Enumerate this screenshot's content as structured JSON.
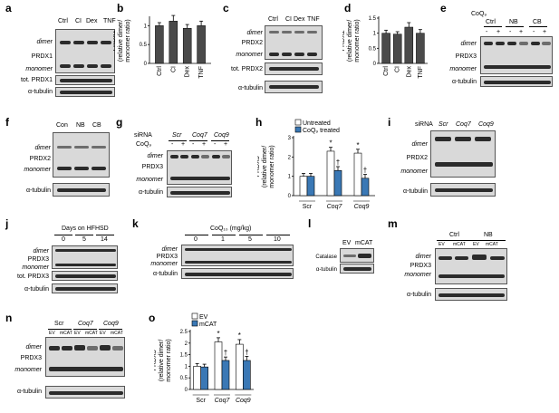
{
  "panels": {
    "a": {
      "letter": "a",
      "lanes": [
        "Ctrl",
        "CI",
        "Dex",
        "TNF"
      ],
      "rows": [
        "dimer",
        "PRDX1",
        "monomer",
        "tot. PRDX1",
        "α-tubulin"
      ]
    },
    "b": {
      "letter": "b"
    },
    "c": {
      "letter": "c",
      "lanes": [
        "Ctrl",
        "CI",
        "Dex",
        "TNF"
      ],
      "rows": [
        "dimer",
        "PRDX2",
        "monomer",
        "tot. PRDX2",
        "α-tubulin"
      ]
    },
    "d": {
      "letter": "d"
    },
    "e": {
      "letter": "e",
      "coq": "CoQ₉",
      "groups": [
        "Ctrl",
        "NB",
        "CB"
      ],
      "signs": [
        "-",
        "+",
        "-",
        "+",
        "-",
        "+"
      ],
      "rows": [
        "dimer",
        "PRDX3",
        "monomer",
        "α-tubulin"
      ]
    },
    "f": {
      "letter": "f",
      "lanes": [
        "Con",
        "NB",
        "CB"
      ],
      "rows": [
        "dimer",
        "PRDX2",
        "monomer",
        "α-tubulin"
      ]
    },
    "g": {
      "letter": "g",
      "sirna": "siRNA",
      "groups": [
        "Scr",
        "Coq7",
        "Coq9"
      ],
      "coq": "CoQ₉",
      "signs": [
        "-",
        "+",
        "-",
        "+",
        "-",
        "+"
      ],
      "rows": [
        "dimer",
        "PRDX3",
        "monomer",
        "α-tubulin"
      ]
    },
    "h": {
      "letter": "h",
      "legend": [
        "Untreated",
        "CoQ₉ treated"
      ]
    },
    "i": {
      "letter": "i",
      "sirna": "siRNA",
      "groups": [
        "Scr",
        "Coq7",
        "Coq9"
      ],
      "rows": [
        "dimer",
        "PRDX2",
        "monomer",
        "α-tubulin"
      ]
    },
    "j": {
      "letter": "j",
      "title": "Days on HFHSD",
      "groups": [
        "0",
        "5",
        "14"
      ],
      "rows": [
        "dimer",
        "PRDX3",
        "monomer",
        "tot. PRDX3",
        "α-tubulin"
      ]
    },
    "k": {
      "letter": "k",
      "title": "CoQ₁₀ (mg/kg)",
      "groups": [
        "0",
        "1",
        "5",
        "10"
      ],
      "rows": [
        "dimer",
        "PRDX3",
        "monomer",
        "α-tubulin"
      ]
    },
    "l": {
      "letter": "l",
      "lanes": [
        "EV",
        "mCAT"
      ],
      "rows": [
        "Catalase",
        "α-tubulin"
      ]
    },
    "m": {
      "letter": "m",
      "groups": [
        "Ctrl",
        "NB"
      ],
      "lanes": [
        "EV",
        "mCAT",
        "EV",
        "mCAT"
      ],
      "rows": [
        "dimer",
        "PRDX3",
        "monomer",
        "α-tubulin"
      ]
    },
    "n": {
      "letter": "n",
      "groups": [
        "Scr",
        "Coq7",
        "Coq9"
      ],
      "lanes": [
        "EV",
        "mCAT",
        "EV",
        "mCAT",
        "EV",
        "mCAT"
      ],
      "rows": [
        "dimer",
        "PRDX3",
        "monomer",
        "α-tubulin"
      ]
    },
    "o": {
      "letter": "o",
      "legend": [
        "EV",
        "mCAT"
      ]
    }
  },
  "chart_data": [
    {
      "id": "b",
      "type": "bar",
      "categories": [
        "Ctrl",
        "CI",
        "Dex",
        "TNF"
      ],
      "values": [
        1.0,
        1.12,
        0.93,
        1.0
      ],
      "errors": [
        0.08,
        0.15,
        0.1,
        0.12
      ],
      "ylabel": "PRDX1 (relative dimer/ monomer ratio)",
      "ylim": [
        0,
        1.2
      ],
      "yticks": [
        0,
        0.5,
        1.0
      ],
      "color": "#4a4a4a"
    },
    {
      "id": "d",
      "type": "bar",
      "categories": [
        "Ctrl",
        "CI",
        "Dex",
        "TNF"
      ],
      "values": [
        1.0,
        0.97,
        1.2,
        1.0
      ],
      "errors": [
        0.1,
        0.08,
        0.15,
        0.12
      ],
      "ylabel": "PRDX2 (relative dimer/ monomer ratio)",
      "ylim": [
        0,
        1.5
      ],
      "yticks": [
        0,
        0.5,
        1.0,
        1.5
      ],
      "color": "#4a4a4a"
    },
    {
      "id": "h",
      "type": "bar",
      "categories": [
        "Scr",
        "Coq7",
        "Coq9"
      ],
      "series": [
        {
          "name": "Untreated",
          "values": [
            1.0,
            2.3,
            2.2
          ],
          "errors": [
            0.15,
            0.2,
            0.2
          ],
          "color": "#ffffff"
        },
        {
          "name": "CoQ₉ treated",
          "values": [
            1.0,
            1.3,
            0.9
          ],
          "errors": [
            0.15,
            0.2,
            0.2
          ],
          "color": "#3a78b5"
        }
      ],
      "marks": [
        [
          "",
          ""
        ],
        [
          "*",
          "†"
        ],
        [
          "*",
          "†"
        ]
      ],
      "ylabel": "PRDX3 (relative dimer/ monomer ratio)",
      "ylim": [
        0,
        3
      ],
      "yticks": [
        0,
        1,
        2,
        3
      ]
    },
    {
      "id": "o",
      "type": "bar",
      "categories": [
        "Scr",
        "Coq7",
        "Coq9"
      ],
      "series": [
        {
          "name": "EV",
          "values": [
            1.0,
            2.05,
            1.95
          ],
          "errors": [
            0.12,
            0.18,
            0.2
          ],
          "color": "#ffffff"
        },
        {
          "name": "mCAT",
          "values": [
            0.97,
            1.25,
            1.25
          ],
          "errors": [
            0.12,
            0.15,
            0.18
          ],
          "color": "#3a78b5"
        }
      ],
      "marks": [
        [
          "",
          ""
        ],
        [
          "*",
          "†"
        ],
        [
          "*",
          "†"
        ]
      ],
      "ylabel": "PRDX3 (relative dimer/ monomer ratio)",
      "ylim": [
        0,
        2.5
      ],
      "yticks": [
        0,
        0.5,
        1.0,
        1.5,
        2.0,
        2.5
      ]
    }
  ]
}
